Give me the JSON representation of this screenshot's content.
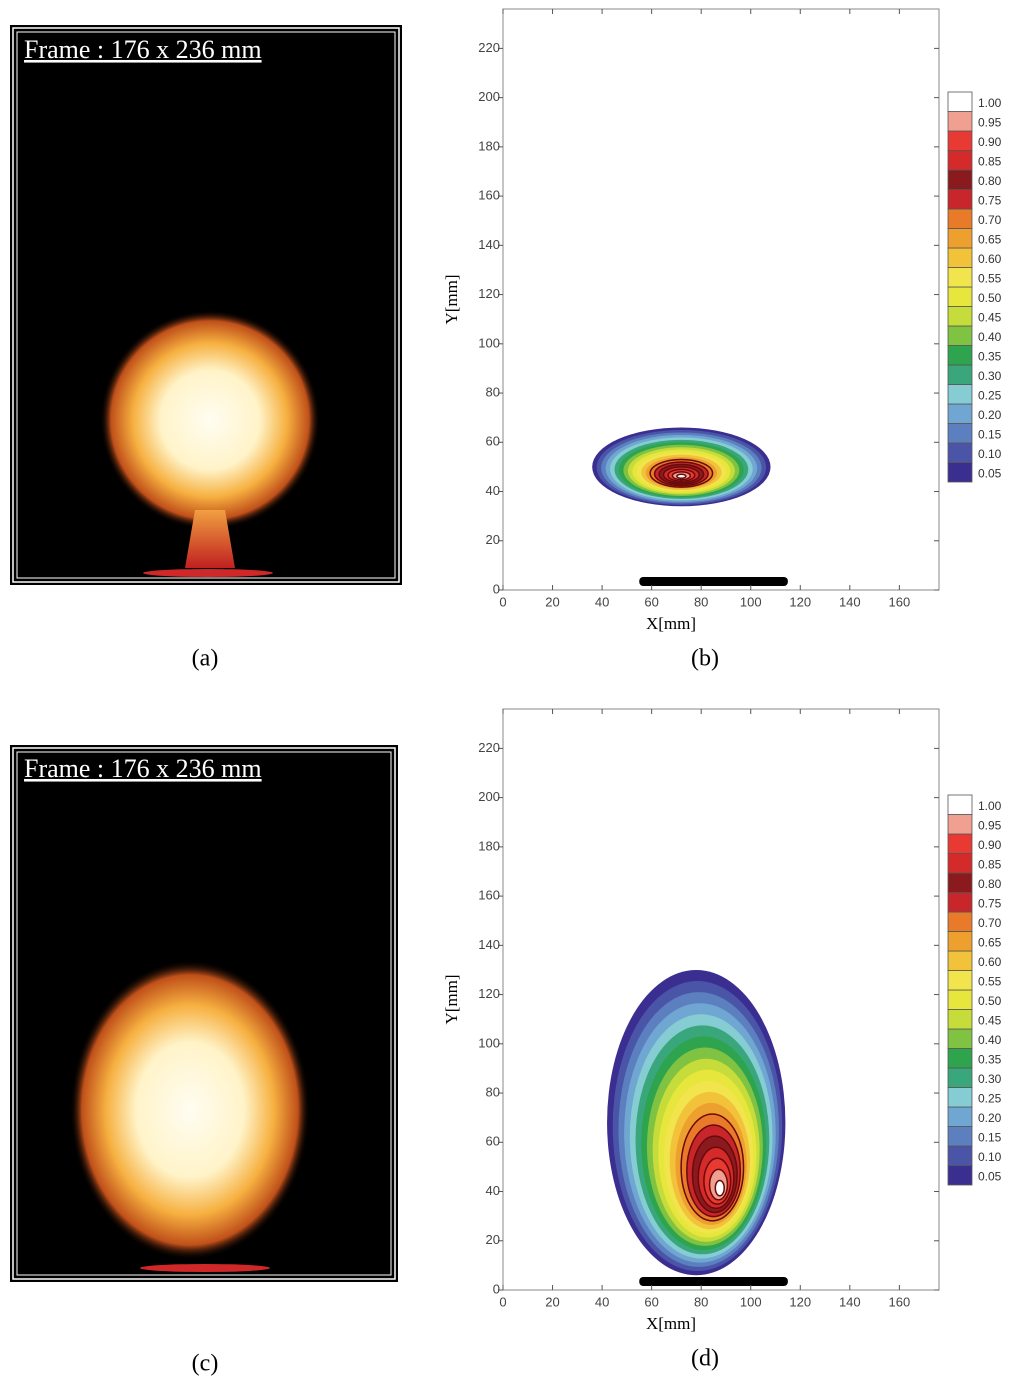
{
  "panels": [
    {
      "frame_label": "Frame : 176 x 236 mm",
      "caption": "(a)"
    },
    {
      "frame_label": "Frame : 176 x 236 mm",
      "caption": "(c)"
    }
  ],
  "chart_data": [
    {
      "type": "contour",
      "caption": "(b)",
      "xlabel": "X[mm]",
      "ylabel": "Y[mm]",
      "xlim": [
        0,
        176
      ],
      "ylim": [
        0,
        236
      ],
      "xticks": [
        0,
        20,
        40,
        60,
        80,
        100,
        120,
        140,
        160
      ],
      "yticks": [
        0,
        20,
        40,
        60,
        80,
        100,
        120,
        140,
        160,
        180,
        200,
        220
      ],
      "levels": [
        {
          "value": 0.05,
          "label": "0.05"
        },
        {
          "value": 0.1,
          "label": "0.10"
        },
        {
          "value": 0.15,
          "label": "0.15"
        },
        {
          "value": 0.2,
          "label": "0.20"
        },
        {
          "value": 0.25,
          "label": "0.25"
        },
        {
          "value": 0.3,
          "label": "0.30"
        },
        {
          "value": 0.35,
          "label": "0.35"
        },
        {
          "value": 0.4,
          "label": "0.40"
        },
        {
          "value": 0.45,
          "label": "0.45"
        },
        {
          "value": 0.5,
          "label": "0.50"
        },
        {
          "value": 0.55,
          "label": "0.55"
        },
        {
          "value": 0.6,
          "label": "0.60"
        },
        {
          "value": 0.65,
          "label": "0.65"
        },
        {
          "value": 0.7,
          "label": "0.70"
        },
        {
          "value": 0.75,
          "label": "0.75"
        },
        {
          "value": 0.8,
          "label": "0.80"
        },
        {
          "value": 0.85,
          "label": "0.85"
        },
        {
          "value": 0.9,
          "label": "0.90"
        },
        {
          "value": 0.95,
          "label": "0.95"
        },
        {
          "value": 1,
          "label": "1.00"
        }
      ],
      "colors": [
        "#3b2e91",
        "#4a55a8",
        "#5b7fbf",
        "#70a6d2",
        "#86cdd3",
        "#3aa67c",
        "#2ea44e",
        "#80c242",
        "#c6dc3a",
        "#e6e63c",
        "#f1e44c",
        "#f2c23a",
        "#eea02e",
        "#e87a2a",
        "#c8262a",
        "#8a1a1e",
        "#d42a2a",
        "#e83a32",
        "#f0a090",
        "#ffffff"
      ]
    },
    {
      "type": "contour",
      "caption": "(d)",
      "xlabel": "X[mm]",
      "ylabel": "Y[mm]",
      "xlim": [
        0,
        176
      ],
      "ylim": [
        0,
        236
      ],
      "xticks": [
        0,
        20,
        40,
        60,
        80,
        100,
        120,
        140,
        160
      ],
      "yticks": [
        0,
        20,
        40,
        60,
        80,
        100,
        120,
        140,
        160,
        180,
        200,
        220
      ],
      "levels": [
        {
          "value": 0.05,
          "label": "0.05"
        },
        {
          "value": 0.1,
          "label": "0.10"
        },
        {
          "value": 0.15,
          "label": "0.15"
        },
        {
          "value": 0.2,
          "label": "0.20"
        },
        {
          "value": 0.25,
          "label": "0.25"
        },
        {
          "value": 0.3,
          "label": "0.30"
        },
        {
          "value": 0.35,
          "label": "0.35"
        },
        {
          "value": 0.4,
          "label": "0.40"
        },
        {
          "value": 0.45,
          "label": "0.45"
        },
        {
          "value": 0.5,
          "label": "0.50"
        },
        {
          "value": 0.55,
          "label": "0.55"
        },
        {
          "value": 0.6,
          "label": "0.60"
        },
        {
          "value": 0.65,
          "label": "0.65"
        },
        {
          "value": 0.7,
          "label": "0.70"
        },
        {
          "value": 0.75,
          "label": "0.75"
        },
        {
          "value": 0.8,
          "label": "0.80"
        },
        {
          "value": 0.85,
          "label": "0.85"
        },
        {
          "value": 0.9,
          "label": "0.90"
        },
        {
          "value": 0.95,
          "label": "0.95"
        },
        {
          "value": 1,
          "label": "1.00"
        }
      ],
      "colors": [
        "#3b2e91",
        "#4a55a8",
        "#5b7fbf",
        "#70a6d2",
        "#86cdd3",
        "#3aa67c",
        "#2ea44e",
        "#80c242",
        "#c6dc3a",
        "#e6e63c",
        "#f1e44c",
        "#f2c23a",
        "#eea02e",
        "#e87a2a",
        "#c8262a",
        "#8a1a1e",
        "#d42a2a",
        "#e83a32",
        "#f0a090",
        "#ffffff"
      ]
    }
  ]
}
